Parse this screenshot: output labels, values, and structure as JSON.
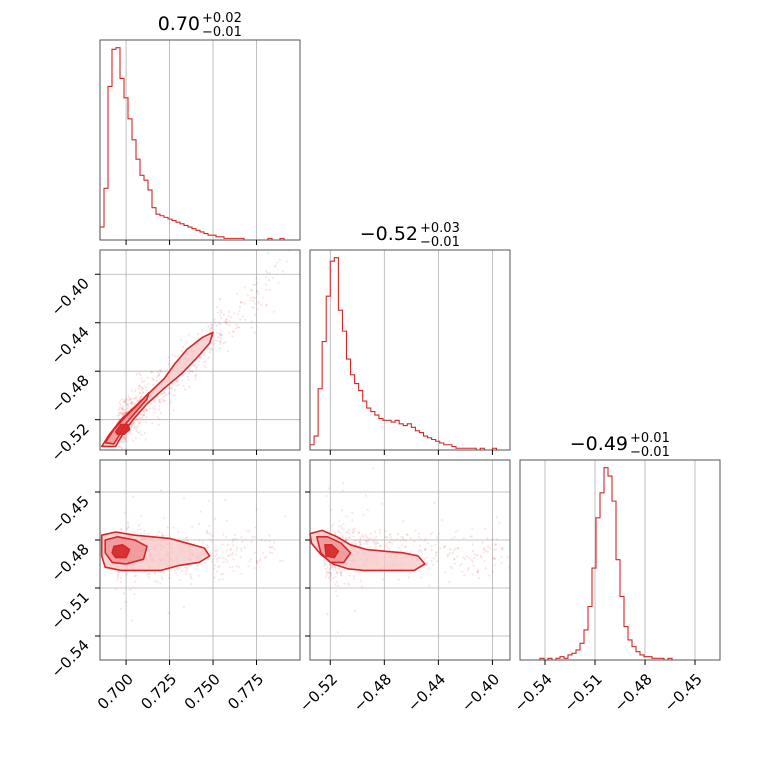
{
  "figure": {
    "colors": {
      "accent": "#d62728",
      "fill_light": "#f7c6c7",
      "fill_mid": "#ec8c8d",
      "grid": "#b0b0b0",
      "axis": "#555555"
    }
  },
  "chart_data": [
    {
      "type": "histogram",
      "panel": "diag-0",
      "title_value": "0.70",
      "title_plus": "+0.02",
      "title_minus": "−0.01",
      "xlim": [
        0.685,
        0.8
      ],
      "xticks": [
        0.7,
        0.725,
        0.75,
        0.775
      ],
      "bin_width": 0.0023,
      "x_start": 0.685,
      "counts": [
        8,
        32,
        95,
        118,
        119,
        100,
        88,
        75,
        62,
        50,
        40,
        37,
        31,
        20,
        16,
        15,
        14,
        13,
        12,
        11,
        10,
        9,
        8,
        7,
        6,
        5,
        4,
        3,
        3,
        2,
        2,
        1,
        1,
        1,
        1,
        1,
        0,
        0,
        0,
        0,
        0,
        0,
        1,
        0,
        0,
        1,
        0,
        0,
        0,
        0
      ]
    },
    {
      "type": "histogram",
      "panel": "diag-1",
      "title_value": "−0.52",
      "title_plus": "+0.03",
      "title_minus": "−0.01",
      "xlim": [
        -0.535,
        -0.387
      ],
      "xticks": [
        -0.52,
        -0.48,
        -0.44,
        -0.4
      ],
      "xtick_labels": [
        "−0.52",
        "−0.48",
        "−0.44",
        "−0.40"
      ],
      "bin_width": 0.003,
      "x_start": -0.535,
      "counts": [
        3,
        8,
        35,
        62,
        88,
        108,
        110,
        80,
        68,
        52,
        43,
        38,
        34,
        28,
        24,
        22,
        20,
        18,
        17,
        17,
        16,
        17,
        15,
        14,
        15,
        13,
        11,
        10,
        8,
        7,
        6,
        5,
        4,
        3,
        3,
        2,
        1,
        1,
        1,
        1,
        1,
        0,
        1,
        0,
        0,
        1,
        0,
        0,
        0,
        0
      ]
    },
    {
      "type": "histogram",
      "panel": "diag-2",
      "title_value": "−0.49",
      "title_plus": "+0.01",
      "title_minus": "−0.01",
      "xlim": [
        -0.555,
        -0.435
      ],
      "xticks": [
        -0.54,
        -0.51,
        -0.48,
        -0.45
      ],
      "xtick_labels": [
        "−0.54",
        "−0.51",
        "−0.48",
        "−0.45"
      ],
      "bin_width": 0.0024,
      "x_start": -0.555,
      "counts": [
        0,
        0,
        0,
        0,
        0,
        1,
        0,
        1,
        0,
        1,
        2,
        1,
        3,
        4,
        6,
        10,
        18,
        32,
        55,
        85,
        100,
        115,
        110,
        95,
        60,
        38,
        20,
        12,
        8,
        5,
        3,
        2,
        2,
        1,
        1,
        1,
        0,
        1,
        0,
        0,
        0,
        0,
        0,
        0,
        0,
        0,
        0,
        0,
        0,
        0
      ]
    },
    {
      "type": "scatter_contour",
      "panel": "pair-1-0",
      "xlim": [
        0.685,
        0.8
      ],
      "ylim": [
        -0.545,
        -0.38
      ],
      "xticks": [
        0.7,
        0.725,
        0.75,
        0.775
      ],
      "yticks": [
        -0.52,
        -0.48,
        -0.44,
        -0.4
      ],
      "ytick_labels": [
        "−0.52",
        "−0.48",
        "−0.44",
        "−0.40"
      ],
      "mean": [
        0.698,
        -0.525
      ],
      "correlation_slope": 2.1,
      "contours": [
        [
          [
            0.686,
            -0.542
          ],
          [
            0.69,
            -0.533
          ],
          [
            0.697,
            -0.52
          ],
          [
            0.706,
            -0.508
          ],
          [
            0.714,
            -0.497
          ],
          [
            0.722,
            -0.486
          ],
          [
            0.728,
            -0.474
          ],
          [
            0.735,
            -0.462
          ],
          [
            0.744,
            -0.452
          ],
          [
            0.75,
            -0.448
          ],
          [
            0.748,
            -0.457
          ],
          [
            0.74,
            -0.47
          ],
          [
            0.732,
            -0.482
          ],
          [
            0.722,
            -0.494
          ],
          [
            0.712,
            -0.507
          ],
          [
            0.704,
            -0.52
          ],
          [
            0.698,
            -0.532
          ],
          [
            0.694,
            -0.542
          ]
        ],
        [
          [
            0.688,
            -0.539
          ],
          [
            0.693,
            -0.528
          ],
          [
            0.7,
            -0.517
          ],
          [
            0.707,
            -0.507
          ],
          [
            0.713,
            -0.498
          ],
          [
            0.712,
            -0.503
          ],
          [
            0.706,
            -0.513
          ],
          [
            0.7,
            -0.523
          ],
          [
            0.696,
            -0.533
          ],
          [
            0.693,
            -0.54
          ]
        ],
        [
          [
            0.694,
            -0.53
          ],
          [
            0.697,
            -0.524
          ],
          [
            0.701,
            -0.524
          ],
          [
            0.702,
            -0.528
          ],
          [
            0.699,
            -0.532
          ],
          [
            0.695,
            -0.532
          ]
        ]
      ]
    },
    {
      "type": "scatter_contour",
      "panel": "pair-2-0",
      "xlim": [
        0.685,
        0.8
      ],
      "ylim": [
        -0.555,
        -0.43
      ],
      "xticks": [
        0.7,
        0.725,
        0.75,
        0.775
      ],
      "xtick_labels": [
        "0.700",
        "0.725",
        "0.750",
        "0.775"
      ],
      "yticks": [
        -0.54,
        -0.51,
        -0.48,
        -0.45
      ],
      "ytick_labels": [
        "−0.54",
        "−0.51",
        "−0.48",
        "−0.45"
      ],
      "mean": [
        0.697,
        -0.488
      ],
      "contours": [
        [
          [
            0.686,
            -0.477
          ],
          [
            0.694,
            -0.475
          ],
          [
            0.705,
            -0.477
          ],
          [
            0.715,
            -0.478
          ],
          [
            0.725,
            -0.479
          ],
          [
            0.735,
            -0.482
          ],
          [
            0.745,
            -0.485
          ],
          [
            0.748,
            -0.49
          ],
          [
            0.742,
            -0.494
          ],
          [
            0.73,
            -0.496
          ],
          [
            0.72,
            -0.499
          ],
          [
            0.708,
            -0.499
          ],
          [
            0.697,
            -0.499
          ],
          [
            0.688,
            -0.497
          ],
          [
            0.686,
            -0.49
          ]
        ],
        [
          [
            0.688,
            -0.48
          ],
          [
            0.695,
            -0.478
          ],
          [
            0.705,
            -0.48
          ],
          [
            0.712,
            -0.484
          ],
          [
            0.71,
            -0.492
          ],
          [
            0.7,
            -0.495
          ],
          [
            0.692,
            -0.494
          ],
          [
            0.688,
            -0.488
          ]
        ],
        [
          [
            0.693,
            -0.484
          ],
          [
            0.698,
            -0.483
          ],
          [
            0.702,
            -0.486
          ],
          [
            0.7,
            -0.491
          ],
          [
            0.694,
            -0.491
          ],
          [
            0.692,
            -0.488
          ]
        ]
      ]
    },
    {
      "type": "scatter_contour",
      "panel": "pair-2-1",
      "xlim": [
        -0.535,
        -0.387
      ],
      "ylim": [
        -0.555,
        -0.43
      ],
      "xticks": [
        -0.52,
        -0.48,
        -0.44,
        -0.4
      ],
      "xtick_labels": [
        "−0.52",
        "−0.48",
        "−0.44",
        "−0.40"
      ],
      "yticks": [
        -0.54,
        -0.51,
        -0.48,
        -0.45
      ],
      "mean": [
        -0.52,
        -0.487
      ],
      "contours": [
        [
          [
            -0.535,
            -0.476
          ],
          [
            -0.526,
            -0.474
          ],
          [
            -0.515,
            -0.478
          ],
          [
            -0.505,
            -0.483
          ],
          [
            -0.493,
            -0.486
          ],
          [
            -0.48,
            -0.487
          ],
          [
            -0.466,
            -0.488
          ],
          [
            -0.455,
            -0.49
          ],
          [
            -0.45,
            -0.495
          ],
          [
            -0.458,
            -0.499
          ],
          [
            -0.47,
            -0.499
          ],
          [
            -0.483,
            -0.499
          ],
          [
            -0.495,
            -0.499
          ],
          [
            -0.507,
            -0.498
          ],
          [
            -0.518,
            -0.495
          ],
          [
            -0.527,
            -0.489
          ],
          [
            -0.534,
            -0.482
          ]
        ],
        [
          [
            -0.53,
            -0.478
          ],
          [
            -0.522,
            -0.478
          ],
          [
            -0.512,
            -0.482
          ],
          [
            -0.505,
            -0.488
          ],
          [
            -0.51,
            -0.494
          ],
          [
            -0.52,
            -0.494
          ],
          [
            -0.527,
            -0.488
          ]
        ],
        [
          [
            -0.524,
            -0.483
          ],
          [
            -0.519,
            -0.483
          ],
          [
            -0.514,
            -0.487
          ],
          [
            -0.517,
            -0.491
          ],
          [
            -0.523,
            -0.49
          ]
        ]
      ]
    }
  ]
}
